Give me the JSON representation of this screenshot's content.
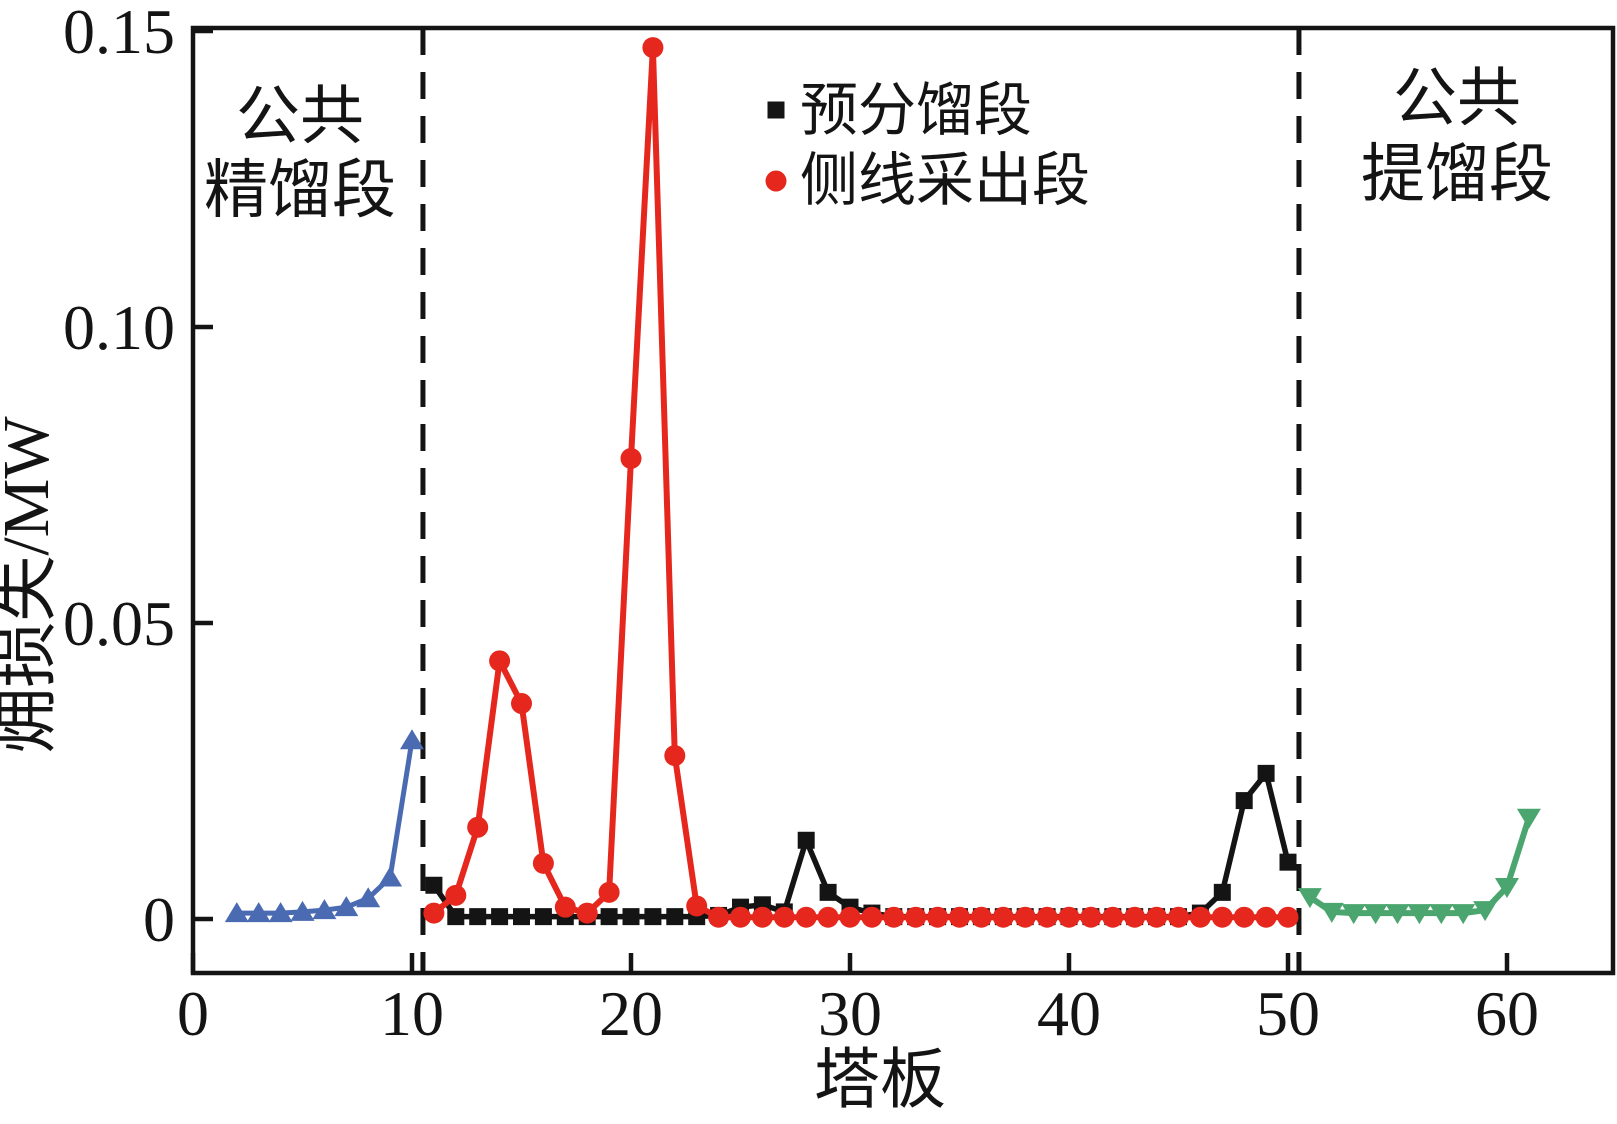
{
  "figure": {
    "background": "#ffffff"
  },
  "chart_data": {
    "type": "line",
    "title": "",
    "xlabel": "塔板",
    "ylabel": "㶲损失/MW",
    "xlim": [
      0,
      65
    ],
    "ylim": [
      -0.009,
      0.1505
    ],
    "grid": false,
    "x_ticks": [
      0,
      10,
      20,
      30,
      40,
      50,
      60
    ],
    "y_ticks": [
      0,
      0.05,
      0.1,
      0.15
    ],
    "y_tick_labels": [
      "0",
      "0.05",
      "0.10",
      "0.15"
    ],
    "region_dividers_x": [
      10.5,
      50.5
    ],
    "annotations": [
      {
        "lines": [
          "公共",
          "精馏段"
        ],
        "region": "left"
      },
      {
        "lines": [
          "公共",
          "提馏段"
        ],
        "region": "right"
      }
    ],
    "legend_position": "top-center-inside",
    "legend": [
      {
        "label": "预分馏段",
        "marker": "square",
        "color": "#141414"
      },
      {
        "label": "侧线采出段",
        "marker": "circle",
        "color": "#e5271d"
      }
    ],
    "axis_color": "#141414",
    "series": [
      {
        "name": "公共精馏段",
        "marker": "triangle-up",
        "color": "#4a6ab2",
        "line_width": 5,
        "in_legend": false,
        "points": [
          [
            2,
            0.001
          ],
          [
            3,
            0.001
          ],
          [
            4,
            0.001
          ],
          [
            5,
            0.0012
          ],
          [
            6,
            0.0015
          ],
          [
            7,
            0.002
          ],
          [
            8,
            0.0035
          ],
          [
            9,
            0.007
          ],
          [
            10,
            0.0302
          ]
        ]
      },
      {
        "name": "预分馏段",
        "marker": "square",
        "color": "#141414",
        "line_width": 5.5,
        "in_legend": true,
        "points": [
          [
            11,
            0.0057
          ],
          [
            12,
            0.0004
          ],
          [
            13,
            0.0004
          ],
          [
            14,
            0.0004
          ],
          [
            15,
            0.0004
          ],
          [
            16,
            0.0004
          ],
          [
            17,
            0.0004
          ],
          [
            18,
            0.0004
          ],
          [
            19,
            0.0004
          ],
          [
            20,
            0.0004
          ],
          [
            21,
            0.0004
          ],
          [
            22,
            0.0004
          ],
          [
            23,
            0.0004
          ],
          [
            24,
            0.0006
          ],
          [
            25,
            0.002
          ],
          [
            26,
            0.0024
          ],
          [
            27,
            0.0012
          ],
          [
            28,
            0.0133
          ],
          [
            29,
            0.0045
          ],
          [
            30,
            0.002
          ],
          [
            31,
            0.001
          ],
          [
            32,
            0.0004
          ],
          [
            33,
            0.0004
          ],
          [
            34,
            0.0004
          ],
          [
            35,
            0.0004
          ],
          [
            36,
            0.0004
          ],
          [
            37,
            0.0004
          ],
          [
            38,
            0.0004
          ],
          [
            39,
            0.0004
          ],
          [
            40,
            0.0004
          ],
          [
            41,
            0.0004
          ],
          [
            42,
            0.0004
          ],
          [
            43,
            0.0004
          ],
          [
            44,
            0.0004
          ],
          [
            45,
            0.0004
          ],
          [
            46,
            0.001
          ],
          [
            47,
            0.0045
          ],
          [
            48,
            0.02
          ],
          [
            49,
            0.0246
          ],
          [
            50,
            0.0096
          ]
        ]
      },
      {
        "name": "侧线采出段",
        "marker": "circle",
        "color": "#e5271d",
        "line_width": 6,
        "in_legend": true,
        "points": [
          [
            11,
            0.001
          ],
          [
            12,
            0.004
          ],
          [
            13,
            0.0155
          ],
          [
            14,
            0.0436
          ],
          [
            15,
            0.0364
          ],
          [
            16,
            0.0094
          ],
          [
            17,
            0.002
          ],
          [
            18,
            0.001
          ],
          [
            19,
            0.0045
          ],
          [
            20,
            0.0778
          ],
          [
            21,
            0.1472
          ],
          [
            22,
            0.0276
          ],
          [
            23,
            0.0022
          ],
          [
            24,
            0.0003
          ],
          [
            25,
            0.0003
          ],
          [
            26,
            0.0003
          ],
          [
            27,
            0.0003
          ],
          [
            28,
            0.0003
          ],
          [
            29,
            0.0003
          ],
          [
            30,
            0.0003
          ],
          [
            31,
            0.0003
          ],
          [
            32,
            0.0003
          ],
          [
            33,
            0.0003
          ],
          [
            34,
            0.0003
          ],
          [
            35,
            0.0003
          ],
          [
            36,
            0.0003
          ],
          [
            37,
            0.0003
          ],
          [
            38,
            0.0003
          ],
          [
            39,
            0.0003
          ],
          [
            40,
            0.0003
          ],
          [
            41,
            0.0003
          ],
          [
            42,
            0.0003
          ],
          [
            43,
            0.0003
          ],
          [
            44,
            0.0003
          ],
          [
            45,
            0.0003
          ],
          [
            46,
            0.0003
          ],
          [
            47,
            0.0003
          ],
          [
            48,
            0.0003
          ],
          [
            49,
            0.0003
          ],
          [
            50,
            0.0003
          ]
        ]
      },
      {
        "name": "公共提馏段",
        "marker": "triangle-down",
        "color": "#4aa56e",
        "line_width": 6,
        "in_legend": false,
        "points": [
          [
            51,
            0.0037
          ],
          [
            52,
            0.0012
          ],
          [
            53,
            0.001
          ],
          [
            54,
            0.001
          ],
          [
            55,
            0.001
          ],
          [
            56,
            0.001
          ],
          [
            57,
            0.001
          ],
          [
            58,
            0.001
          ],
          [
            59,
            0.0015
          ],
          [
            60,
            0.0054
          ],
          [
            61,
            0.0171
          ]
        ]
      }
    ]
  }
}
